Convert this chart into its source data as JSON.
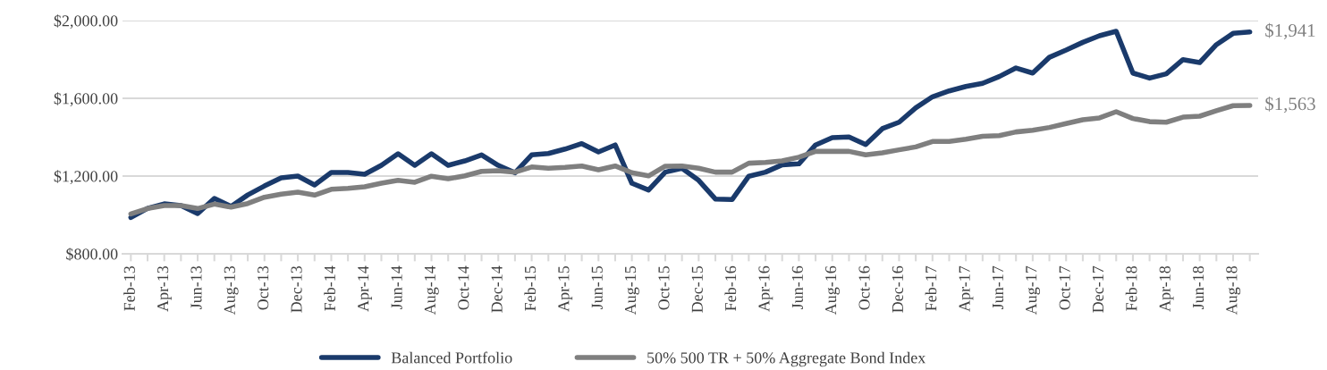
{
  "chart_data": {
    "type": "line",
    "categories": [
      "Feb-13",
      null,
      "Apr-13",
      null,
      "Jun-13",
      null,
      "Aug-13",
      null,
      "Oct-13",
      null,
      "Dec-13",
      null,
      "Feb-14",
      null,
      "Apr-14",
      null,
      "Jun-14",
      null,
      "Aug-14",
      null,
      "Oct-14",
      null,
      "Dec-14",
      null,
      "Feb-15",
      null,
      "Apr-15",
      null,
      "Jun-15",
      null,
      "Aug-15",
      null,
      "Oct-15",
      null,
      "Dec-15",
      null,
      "Feb-16",
      null,
      "Apr-16",
      null,
      "Jun-16",
      null,
      "Aug-16",
      null,
      "Oct-16",
      null,
      "Dec-16",
      null,
      "Feb-17",
      null,
      "Apr-17",
      null,
      "Jun-17",
      null,
      "Aug-17",
      null,
      "Oct-17",
      null,
      "Dec-17",
      null,
      "Feb-18",
      null,
      "Apr-18",
      null,
      "Jun-18",
      null,
      "Aug-18",
      null
    ],
    "series": [
      {
        "name": "Balanced Portfolio",
        "color": "#1a3a6b",
        "values": [
          987,
          1034,
          1057,
          1048,
          1007,
          1085,
          1044,
          1103,
          1149,
          1191,
          1200,
          1154,
          1218,
          1218,
          1209,
          1255,
          1315,
          1255,
          1315,
          1255,
          1278,
          1309,
          1255,
          1217,
          1309,
          1316,
          1339,
          1367,
          1324,
          1360,
          1163,
          1128,
          1220,
          1240,
          1178,
          1082,
          1079,
          1199,
          1220,
          1258,
          1263,
          1360,
          1398,
          1401,
          1362,
          1444,
          1477,
          1551,
          1608,
          1638,
          1661,
          1677,
          1712,
          1756,
          1730,
          1811,
          1848,
          1888,
          1922,
          1945,
          1730,
          1704,
          1726,
          1799,
          1784,
          1876,
          1934,
          1941
        ],
        "value_labels": [
          null,
          null,
          null,
          null,
          null,
          null,
          null,
          null,
          null,
          null,
          null,
          null,
          null,
          null,
          null,
          null,
          null,
          null,
          null,
          null,
          null,
          null,
          null,
          null,
          null,
          null,
          null,
          null,
          null,
          null,
          null,
          null,
          null,
          null,
          null,
          null,
          null,
          null,
          null,
          null,
          null,
          null,
          null,
          null,
          null,
          null,
          null,
          null,
          null,
          null,
          null,
          null,
          null,
          null,
          null,
          null,
          null,
          null,
          null,
          null,
          null,
          null,
          null,
          null,
          null,
          null,
          null,
          "$1,941"
        ]
      },
      {
        "name": "50% 500 TR + 50% Aggregate Bond Index",
        "color": "#7f7f7f",
        "values": [
          1005,
          1033,
          1048,
          1048,
          1033,
          1056,
          1040,
          1059,
          1091,
          1107,
          1117,
          1102,
          1132,
          1137,
          1145,
          1163,
          1178,
          1168,
          1199,
          1186,
          1201,
          1224,
          1228,
          1220,
          1247,
          1240,
          1245,
          1252,
          1232,
          1252,
          1217,
          1201,
          1251,
          1252,
          1240,
          1220,
          1220,
          1266,
          1270,
          1278,
          1297,
          1327,
          1327,
          1327,
          1309,
          1320,
          1335,
          1350,
          1378,
          1378,
          1390,
          1405,
          1408,
          1427,
          1436,
          1450,
          1470,
          1490,
          1499,
          1531,
          1496,
          1480,
          1477,
          1503,
          1508,
          1536,
          1562,
          1563
        ],
        "value_labels": [
          null,
          null,
          null,
          null,
          null,
          null,
          null,
          null,
          null,
          null,
          null,
          null,
          null,
          null,
          null,
          null,
          null,
          null,
          null,
          null,
          null,
          null,
          null,
          null,
          null,
          null,
          null,
          null,
          null,
          null,
          null,
          null,
          null,
          null,
          null,
          null,
          null,
          null,
          null,
          null,
          null,
          null,
          null,
          null,
          null,
          null,
          null,
          null,
          null,
          null,
          null,
          null,
          null,
          null,
          null,
          null,
          null,
          null,
          null,
          null,
          null,
          null,
          null,
          null,
          null,
          null,
          null,
          "$1,563"
        ]
      }
    ],
    "ylim": [
      800,
      2000
    ],
    "yticks": [
      {
        "value": 800,
        "label": "$800.00"
      },
      {
        "value": 1200,
        "label": "$1,200.00"
      },
      {
        "value": 1600,
        "label": "$1,600.00"
      },
      {
        "value": 2000,
        "label": "$2,000.00"
      }
    ],
    "grid": "y",
    "legend": "bottom",
    "marker": "none",
    "line_style": "solid"
  }
}
